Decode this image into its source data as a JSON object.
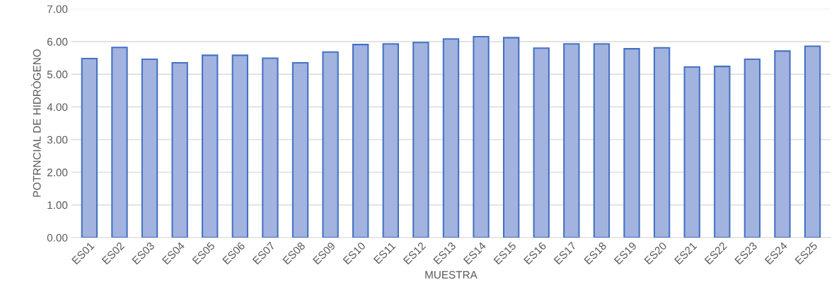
{
  "chart_data": {
    "type": "bar",
    "xlabel": "MUESTRA",
    "ylabel": "POTRNCIAL DE HIDRÒGENO",
    "categories": [
      "ES01",
      "ES02",
      "ES03",
      "ES04",
      "ES05",
      "ES06",
      "ES07",
      "ES08",
      "ES09",
      "ES10",
      "ES11",
      "ES12",
      "ES13",
      "ES14",
      "ES15",
      "ES16",
      "ES17",
      "ES18",
      "ES19",
      "ES20",
      "ES21",
      "ES22",
      "ES23",
      "ES24",
      "ES25"
    ],
    "values": [
      5.48,
      5.82,
      5.46,
      5.35,
      5.58,
      5.58,
      5.49,
      5.35,
      5.68,
      5.91,
      5.93,
      5.97,
      6.08,
      6.15,
      6.12,
      5.8,
      5.93,
      5.93,
      5.78,
      5.81,
      5.22,
      5.24,
      5.46,
      5.71,
      5.86
    ],
    "color": "#a3b3df",
    "ylim": [
      0,
      7
    ],
    "yticks": [
      {
        "value": 0,
        "label": "0.00"
      },
      {
        "value": 1,
        "label": "1.00"
      },
      {
        "value": 2,
        "label": "2.00"
      },
      {
        "value": 3,
        "label": "3.00"
      },
      {
        "value": 4,
        "label": "4.00"
      },
      {
        "value": 5,
        "label": "5.00"
      },
      {
        "value": 6,
        "label": "6.00"
      },
      {
        "value": 7,
        "label": "7.00"
      }
    ],
    "grid": "y"
  }
}
